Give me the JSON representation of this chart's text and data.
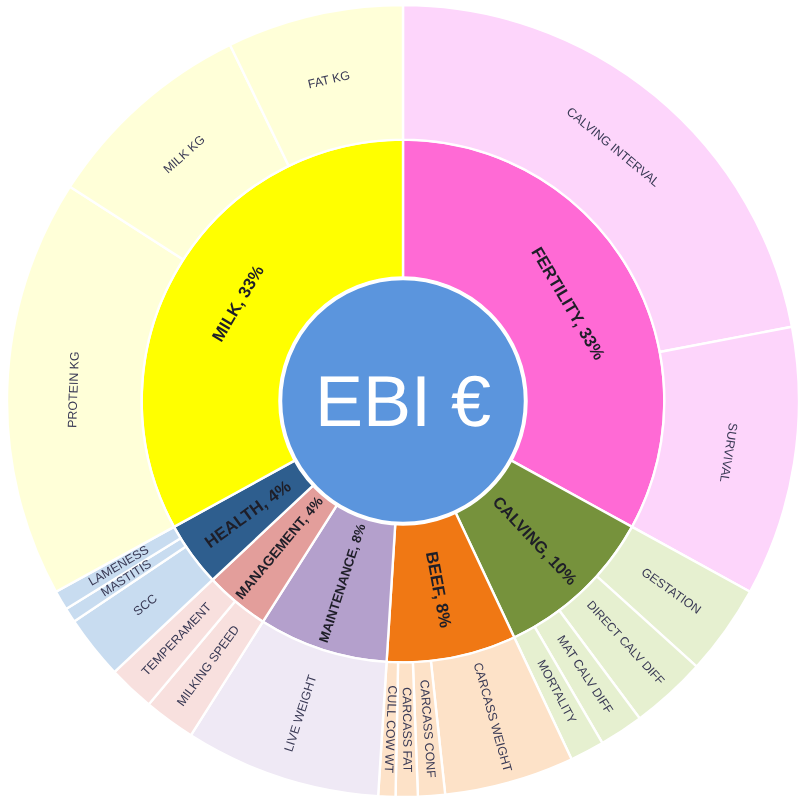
{
  "chart_data": {
    "type": "donut",
    "title": "EBI €",
    "series": [
      {
        "values": [
          33,
          10,
          8,
          8,
          4,
          4,
          33
        ],
        "value_labels": [
          "FERTILITY, 33%",
          "CALVING, 10%",
          "BEEF, 8%",
          "MAINTENANCE, 8%",
          "MANAGEMENT, 4%",
          "HEALTH, 4%",
          "MILK, 33%"
        ],
        "colors": [
          "#ff6ad5",
          "#76923c",
          "#f07814",
          "#b4a0cc",
          "#e39e9b",
          "#2e5e8e",
          "#ffff00"
        ]
      },
      {
        "values": [
          22,
          11,
          3.7,
          3.1,
          1.8,
          1.4,
          5.3,
          1.1,
          0.9,
          0.7,
          8,
          2.1,
          1.9,
          2.6,
          0.6,
          0.8,
          17.1,
          8.7,
          7.2
        ],
        "value_labels": [
          "CALVING INTERVAL",
          "SURVIVAL",
          "GESTATION",
          "DIRECT CALV DIFF",
          "MAT CALV DIFF",
          "MORTALITY",
          "CARCASS WEIGHT",
          "CARCASS CONF",
          "CARCASS FAT",
          "CULL COW WT",
          "LIVE WEIGHT",
          "MILKING SPEED",
          "TEMPERAMENT",
          "SCC",
          "MASTITIS",
          "LAMENESS",
          "PROTEIN KG",
          "MILK KG",
          "FAT KG"
        ],
        "colors": [
          "#fdd5fb",
          "#fdd5fb",
          "#e6f0d0",
          "#e6f0d0",
          "#e6f0d0",
          "#e6f0d0",
          "#fde2c8",
          "#fde2c8",
          "#fde2c8",
          "#fde2c8",
          "#efe9f5",
          "#f8e0de",
          "#f8e0de",
          "#c8dcf0",
          "#c8dcf0",
          "#c8dcf0",
          "#ffffd8",
          "#ffffd8",
          "#ffffd8"
        ]
      }
    ]
  }
}
